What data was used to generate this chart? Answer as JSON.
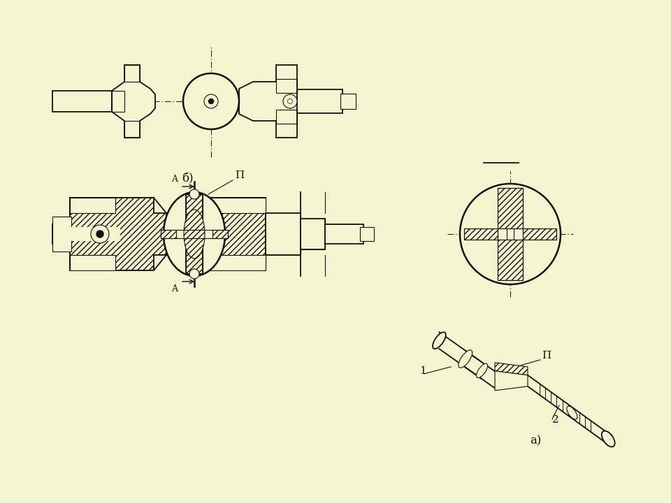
{
  "bg": "#f5f4d0",
  "lc": "#111111",
  "fig_w": 9.6,
  "fig_h": 7.2,
  "lП": "П",
  "lA": "A",
  "la": "а)",
  "lb": "б)",
  "l1": "1",
  "l2": "2"
}
